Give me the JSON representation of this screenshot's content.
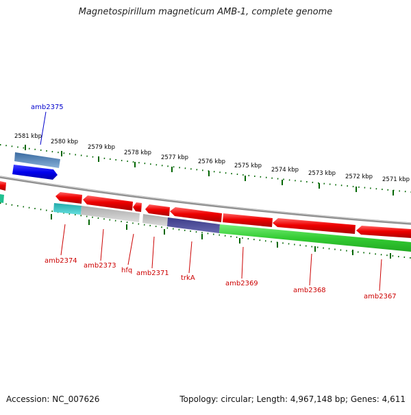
{
  "title": "Magnetospirillum magneticum AMB-1, complete genome",
  "footer": {
    "accession": "Accession: NC_007626",
    "summary": "Topology: circular; Length: 4,967,148 bp; Genes: 4,611"
  },
  "ruler_labels": [
    "2581 kbp",
    "2580 kbp",
    "2579 kbp",
    "2578 kbp",
    "2577 kbp",
    "2576 kbp",
    "2575 kbp",
    "2574 kbp",
    "2573 kbp",
    "2572 kbp",
    "2571 kbp"
  ],
  "genes_top": [
    {
      "name": "amb2375",
      "color": "#0000cc"
    }
  ],
  "genes_bottom": [
    {
      "name": "amb2374",
      "color": "#cc0000"
    },
    {
      "name": "amb2373",
      "color": "#cc0000"
    },
    {
      "name": "hfq",
      "color": "#cc0000"
    },
    {
      "name": "amb2371",
      "color": "#cc0000"
    },
    {
      "name": "trkA",
      "color": "#cc0000"
    },
    {
      "name": "amb2369",
      "color": "#cc0000"
    },
    {
      "name": "amb2368",
      "color": "#cc0000"
    },
    {
      "name": "amb2367",
      "color": "#cc0000"
    }
  ],
  "colors": {
    "forward_gene": "#0000ee",
    "reverse_gene": "#ee0000",
    "backbone": "#888888",
    "tick": "#006600",
    "cds_green": "#33cc33",
    "cds_cyan": "#22cccc",
    "cds_grey": "#bbbbbb",
    "cds_purple": "#4a4a9a",
    "cds_steel": "#4a7fb0"
  }
}
